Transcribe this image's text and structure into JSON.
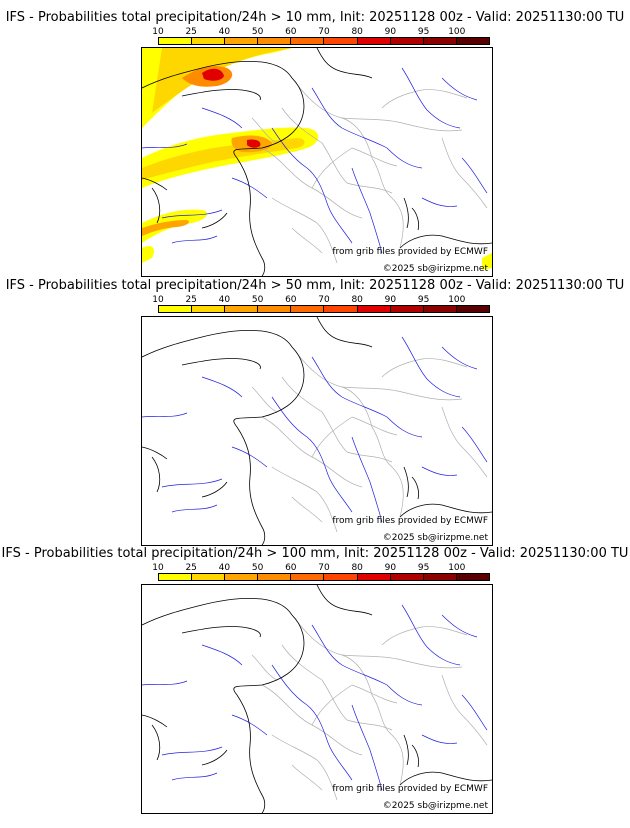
{
  "panels": [
    {
      "title": "IFS - Probabilities total precipitation/24h > 10 mm, Init: 20251128 00z - Valid: 20251130:00 TU",
      "threshold": "10 mm",
      "has_precip": true
    },
    {
      "title": "IFS - Probabilities total precipitation/24h > 50 mm, Init: 20251128 00z - Valid: 20251130:00 TU",
      "threshold": "50 mm",
      "has_precip": false
    },
    {
      "title": "IFS - Probabilities total precipitation/24h > 100 mm, Init: 20251128 00z - Valid: 20251130:00 TU",
      "threshold": "100 mm",
      "has_precip": false
    }
  ],
  "colorbar": {
    "levels": [
      "10",
      "25",
      "40",
      "50",
      "60",
      "70",
      "80",
      "90",
      "95",
      "100"
    ],
    "colors": [
      "#ffff00",
      "#ffd700",
      "#ffa500",
      "#ff8c00",
      "#ff6a00",
      "#ff4500",
      "#e00000",
      "#b00000",
      "#8b0000",
      "#5a0000"
    ]
  },
  "credits": {
    "provider": "from grib files provided by ECMWF",
    "copyright": "©2025 sb@irizpme.net"
  },
  "map_colors": {
    "coast": "#000000",
    "borders": "#b0b0b0",
    "rivers": "#2020e0"
  }
}
